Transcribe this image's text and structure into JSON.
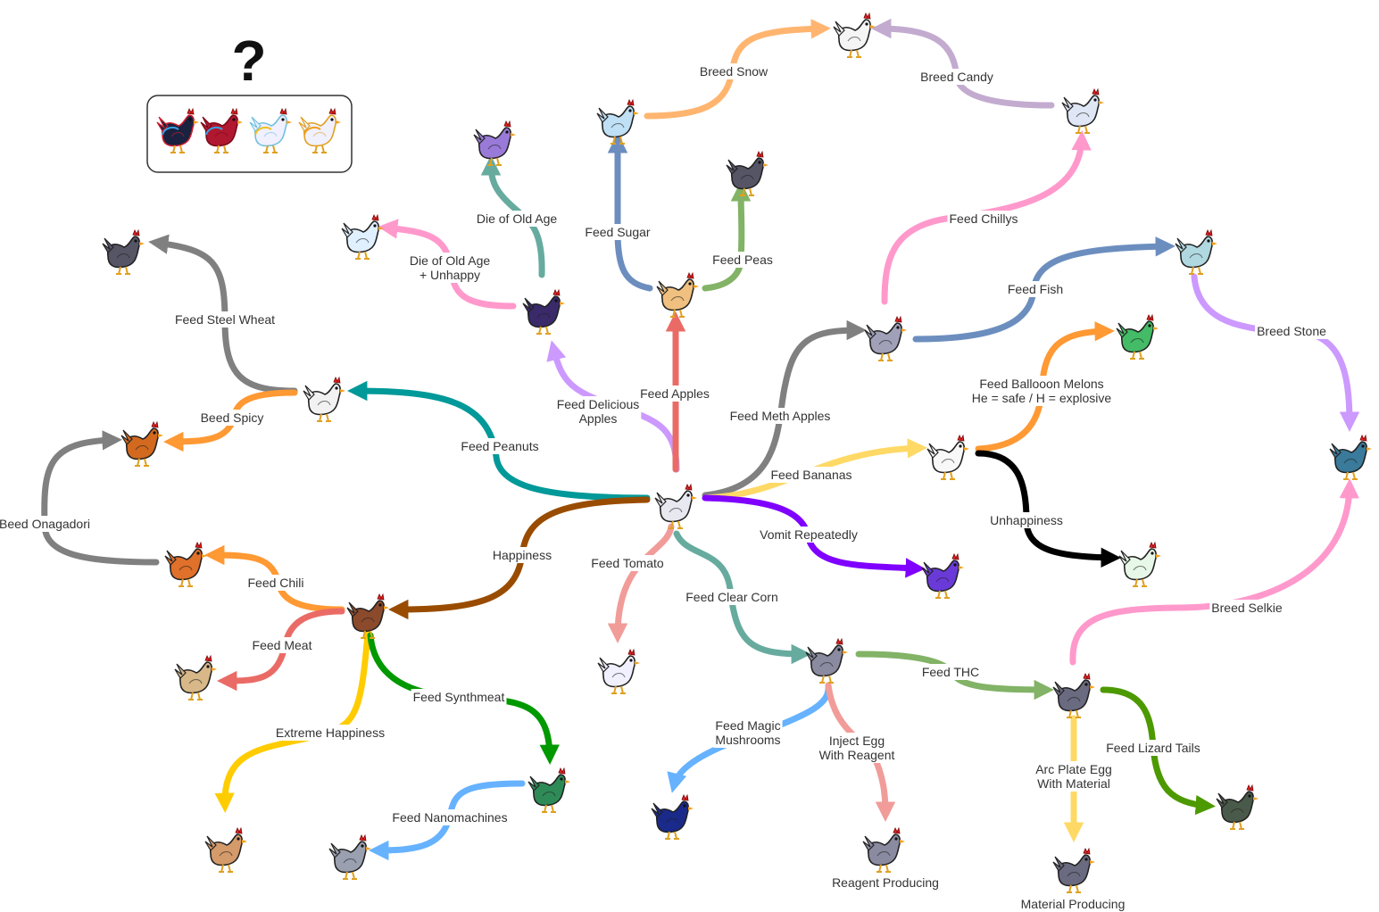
{
  "colors": {
    "teal": "#009999",
    "brown": "#994c00",
    "lavender": "#cc99ff",
    "red": "#ea6b66",
    "grey": "#808080",
    "yellow": "#ffd966",
    "purple": "#7f00ff",
    "salmon": "#f19c99",
    "sage": "#67ab9f",
    "orange": "#ff9933",
    "gold": "#ffcc00",
    "green": "#009900",
    "sky": "#66b2ff",
    "pink": "#ff99cc",
    "slate": "#6c8ebf",
    "mint": "#82b366",
    "peach": "#ffb570",
    "mauve": "#c3abd0",
    "black": "#000000",
    "olive": "#4d9900"
  },
  "unknown": {
    "symbol": "?",
    "chickens": [
      "raven-chicken",
      "crimson-chicken",
      "gold-crest-chicken",
      "amber-crest-chicken"
    ]
  },
  "nodes": [
    {
      "id": "center",
      "icon": "white-chicken-icon",
      "body": "#e8e8f0"
    },
    {
      "id": "rooster",
      "icon": "rooster-icon",
      "body": "#f2f2f2"
    },
    {
      "id": "steel",
      "icon": "steel-rooster-icon",
      "body": "#555566"
    },
    {
      "id": "phoenix",
      "icon": "phoenix-icon",
      "body": "#d2691e"
    },
    {
      "id": "red_hen",
      "icon": "red-hen-icon",
      "body": "#e0702a"
    },
    {
      "id": "brown_hen",
      "icon": "brown-hen-icon",
      "body": "#8b4a2b"
    },
    {
      "id": "raptor",
      "icon": "raptor-chicken-icon",
      "body": "#d8b888"
    },
    {
      "id": "gold_hen",
      "icon": "golden-hen-icon",
      "body": "#d49a6a"
    },
    {
      "id": "synth_chicken",
      "icon": "synth-chicken-icon",
      "body": "#2e8b57"
    },
    {
      "id": "robot_chicken",
      "icon": "robo-chicken-icon",
      "body": "#9aa0b0"
    },
    {
      "id": "tomato_chicken",
      "icon": "pale-chicken-icon",
      "body": "#f0f0ff"
    },
    {
      "id": "dark_hen",
      "icon": "dark-hen-icon",
      "body": "#3a2a6a"
    },
    {
      "id": "spirit_bird",
      "icon": "ghost-bird-icon",
      "body": "#e0f0ff"
    },
    {
      "id": "old_ghost",
      "icon": "purple-ghost-icon",
      "body": "#9a7ad8"
    },
    {
      "id": "orange_hen",
      "icon": "orange-hen-icon",
      "body": "#f0c080"
    },
    {
      "id": "pigeon",
      "icon": "pigeon-icon",
      "body": "#555566"
    },
    {
      "id": "snow_chicken",
      "icon": "snow-chicken-icon",
      "body": "#bfe0f5"
    },
    {
      "id": "candy_hen",
      "icon": "candy-chicken-icon",
      "body": "#f5f5f5"
    },
    {
      "id": "candy_tuft",
      "icon": "candy-tuft-chicken-icon",
      "body": "#dfe6f5"
    },
    {
      "id": "grey_hen",
      "icon": "grey-hen-icon",
      "body": "#a0a0b8"
    },
    {
      "id": "mermaid",
      "icon": "mermaid-chicken-icon",
      "body": "#b0d8e0"
    },
    {
      "id": "banana_hen",
      "icon": "banana-chicken-icon",
      "body": "#f8f8f8"
    },
    {
      "id": "parrot",
      "icon": "parrot-chicken-icon",
      "body": "#44bb66"
    },
    {
      "id": "crystal",
      "icon": "crystal-chicken-icon",
      "body": "#3a7a9a"
    },
    {
      "id": "ghost_green",
      "icon": "spirit-chicken-icon",
      "body": "#e8f8e8"
    },
    {
      "id": "purple_hen",
      "icon": "purple-hen-icon",
      "body": "#6a3ad8"
    },
    {
      "id": "corn_hen",
      "icon": "corn-chicken-icon",
      "body": "#8a8aa0"
    },
    {
      "id": "blue_chicken",
      "icon": "blue-chicken-icon",
      "body": "#1a2a8a"
    },
    {
      "id": "reagent_hen",
      "icon": "reagent-chicken-icon",
      "body": "#8a8aa0"
    },
    {
      "id": "thc_hen",
      "icon": "thc-chicken-icon",
      "body": "#6a6a80"
    },
    {
      "id": "material_hen",
      "icon": "material-chicken-icon",
      "body": "#6a6a80"
    },
    {
      "id": "lizard",
      "icon": "lizard-chicken-icon",
      "body": "#4a5a4a"
    }
  ],
  "edges": [
    {
      "label": "Feed Peanuts",
      "color": "teal"
    },
    {
      "label": "Happiness",
      "color": "brown"
    },
    {
      "label": "Feed Delicious\nApples",
      "color": "lavender"
    },
    {
      "label": "Feed Apples",
      "color": "red"
    },
    {
      "label": "Feed Meth Apples",
      "color": "grey"
    },
    {
      "label": "Feed Bananas",
      "color": "yellow"
    },
    {
      "label": "Vomit Repeatedly",
      "color": "purple"
    },
    {
      "label": "Feed Tomato",
      "color": "salmon"
    },
    {
      "label": "Feed Clear Corn",
      "color": "sage"
    },
    {
      "label": "Feed Steel Wheat",
      "color": "grey"
    },
    {
      "label": "Beed Spicy",
      "color": "orange"
    },
    {
      "label": "Beed Onagadori",
      "color": "grey"
    },
    {
      "label": "Feed Chili",
      "color": "orange"
    },
    {
      "label": "Feed Meat",
      "color": "red"
    },
    {
      "label": "Extreme Happiness",
      "color": "gold"
    },
    {
      "label": "Feed Synthmeat",
      "color": "green"
    },
    {
      "label": "Feed Nanomachines",
      "color": "sky"
    },
    {
      "label": "Die of Old Age\n+ Unhappy",
      "color": "pink"
    },
    {
      "label": "Die of Old Age",
      "color": "sage"
    },
    {
      "label": "Feed Sugar",
      "color": "slate"
    },
    {
      "label": "Feed Peas",
      "color": "mint"
    },
    {
      "label": "Breed Snow",
      "color": "peach"
    },
    {
      "label": "Breed Candy",
      "color": "mauve"
    },
    {
      "label": "Feed Chillys",
      "color": "pink"
    },
    {
      "label": "Feed Fish",
      "color": "slate"
    },
    {
      "label": "Breed Stone",
      "color": "lavender"
    },
    {
      "label": "Feed Ballooon Melons\nHe = safe / H = explosive",
      "color": "orange"
    },
    {
      "label": "Unhappiness",
      "color": "black"
    },
    {
      "label": "Feed Magic\nMushrooms",
      "color": "sky"
    },
    {
      "label": "Inject Egg\nWith Reagent",
      "color": "salmon"
    },
    {
      "label": "Feed THC",
      "color": "mint"
    },
    {
      "label": "Arc Plate Egg\nWith Material",
      "color": "yellow"
    },
    {
      "label": "Feed Lizard Tails",
      "color": "olive"
    },
    {
      "label": "Breed Selkie",
      "color": "pink"
    }
  ],
  "captions": [
    {
      "text": "Reagent Producing"
    },
    {
      "text": "Material Producing"
    }
  ]
}
